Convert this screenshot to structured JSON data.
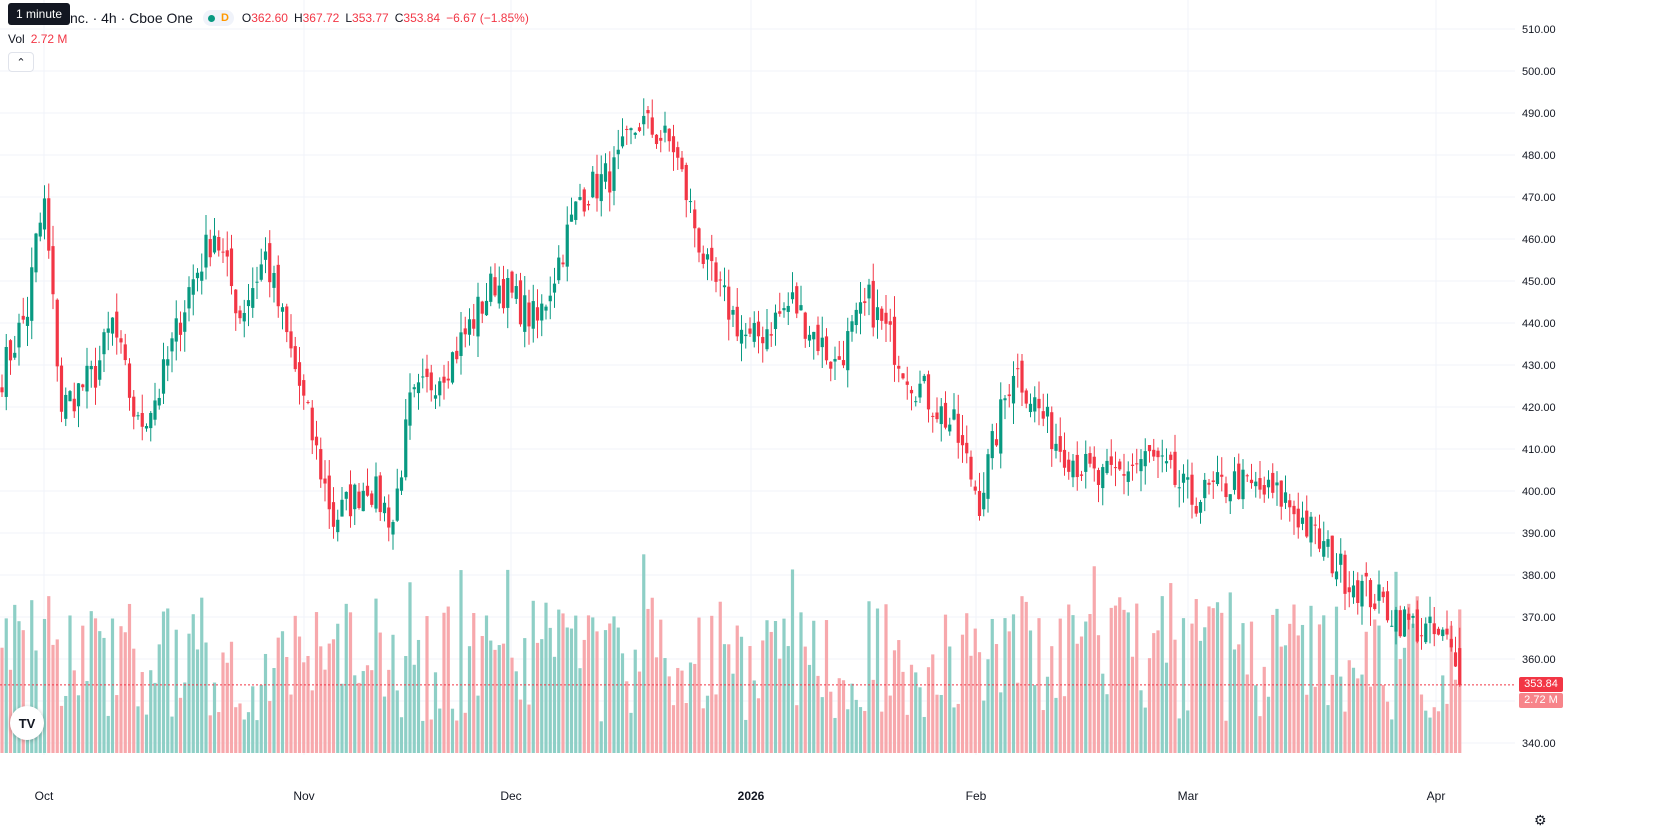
{
  "header": {
    "tooltip": "1 minute",
    "symbol_line": "nc. · 4h · Cboe One",
    "interval_flag": "D",
    "ohlc": {
      "o_label": "O",
      "o": "362.60",
      "h_label": "H",
      "h": "367.72",
      "l_label": "L",
      "l": "353.77",
      "c_label": "C",
      "c": "353.84",
      "change": "−6.67 (−1.85%)"
    },
    "vol_label": "Vol",
    "vol_value": "2.72 M"
  },
  "price_tag": "353.84",
  "volume_tag": "2.72 M",
  "logo_text": "TV",
  "colors": {
    "up": "#089981",
    "down": "#f23645",
    "vol_up": "#8ecfc6",
    "vol_down": "#f7a8ac",
    "grid": "#f0f3fa"
  },
  "icons": {
    "collapse": "chevron-up-icon",
    "settings": "settings-icon",
    "logo": "tradingview-logo-icon"
  },
  "chart_data": {
    "type": "candlestick",
    "interval": "4h",
    "ylim": [
      337,
      513
    ],
    "y_ticks": [
      "510.00",
      "500.00",
      "490.00",
      "480.00",
      "470.00",
      "460.00",
      "450.00",
      "440.00",
      "430.00",
      "420.00",
      "410.00",
      "400.00",
      "390.00",
      "380.00",
      "370.00",
      "360.00",
      "350.00",
      "340.00"
    ],
    "x_ticks": [
      "Oct",
      "Nov",
      "Dec",
      "2026",
      "Feb",
      "Mar",
      "Apr"
    ],
    "last_price": 353.84,
    "last_volume": "2.72 M",
    "price_anchors": [
      [
        0,
        428
      ],
      [
        6,
        443
      ],
      [
        8,
        459
      ],
      [
        10,
        468
      ],
      [
        14,
        420
      ],
      [
        22,
        428
      ],
      [
        26,
        440
      ],
      [
        32,
        415
      ],
      [
        37,
        424
      ],
      [
        44,
        448
      ],
      [
        50,
        462
      ],
      [
        56,
        442
      ],
      [
        62,
        456
      ],
      [
        70,
        425
      ],
      [
        78,
        393
      ],
      [
        86,
        402
      ],
      [
        92,
        393
      ],
      [
        96,
        420
      ],
      [
        106,
        432
      ],
      [
        116,
        450
      ],
      [
        126,
        440
      ],
      [
        136,
        470
      ],
      [
        144,
        476
      ],
      [
        150,
        488
      ],
      [
        158,
        482
      ],
      [
        166,
        452
      ],
      [
        176,
        435
      ],
      [
        186,
        445
      ],
      [
        196,
        430
      ],
      [
        204,
        445
      ],
      [
        214,
        427
      ],
      [
        224,
        415
      ],
      [
        230,
        398
      ],
      [
        238,
        430
      ],
      [
        248,
        412
      ],
      [
        258,
        402
      ],
      [
        270,
        408
      ],
      [
        280,
        398
      ],
      [
        290,
        402
      ],
      [
        302,
        398
      ],
      [
        316,
        380
      ],
      [
        330,
        369
      ],
      [
        340,
        364
      ],
      [
        343,
        354
      ]
    ],
    "volume_ylim": [
      0,
      3.6
    ],
    "volume_range": [
      0.6,
      3.0
    ]
  }
}
